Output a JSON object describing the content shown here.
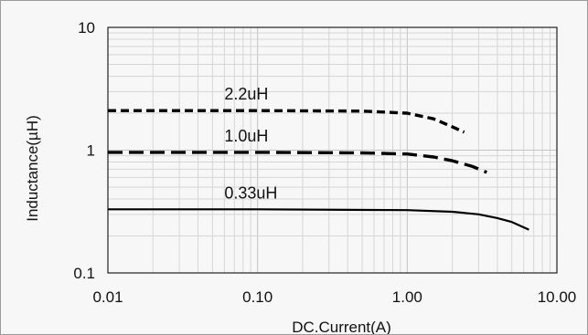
{
  "chart_data": {
    "type": "line",
    "title": "",
    "xlabel": "DC.Current(A)",
    "ylabel": "Inductance(µH)",
    "x_scale": "log",
    "y_scale": "log",
    "xlim": [
      0.01,
      10
    ],
    "ylim": [
      0.1,
      10
    ],
    "x_ticks": [
      {
        "value": 0.01,
        "label": "0.01"
      },
      {
        "value": 0.1,
        "label": "0.10"
      },
      {
        "value": 1,
        "label": "1.00"
      },
      {
        "value": 10,
        "label": "10.00"
      }
    ],
    "y_ticks": [
      {
        "value": 0.1,
        "label": "0.1"
      },
      {
        "value": 1,
        "label": "1"
      },
      {
        "value": 10,
        "label": "10"
      }
    ],
    "grid": true,
    "series": [
      {
        "name": "2.2uH",
        "style": "dashed",
        "color": "#000000",
        "x": [
          0.01,
          0.1,
          0.5,
          1.0,
          1.5,
          2.0,
          2.4
        ],
        "y": [
          2.1,
          2.1,
          2.08,
          2.0,
          1.8,
          1.55,
          1.4
        ]
      },
      {
        "name": "1.0uH",
        "style": "dashed",
        "color": "#000000",
        "x": [
          0.01,
          0.1,
          0.5,
          1.0,
          1.5,
          2.0,
          2.7,
          3.4
        ],
        "y": [
          0.96,
          0.96,
          0.95,
          0.93,
          0.88,
          0.82,
          0.74,
          0.66
        ]
      },
      {
        "name": "0.33uH",
        "style": "solid",
        "color": "#000000",
        "x": [
          0.01,
          0.1,
          1.0,
          2.0,
          3.0,
          4.0,
          5.0,
          6.5
        ],
        "y": [
          0.33,
          0.33,
          0.325,
          0.315,
          0.3,
          0.28,
          0.26,
          0.225
        ]
      }
    ]
  }
}
